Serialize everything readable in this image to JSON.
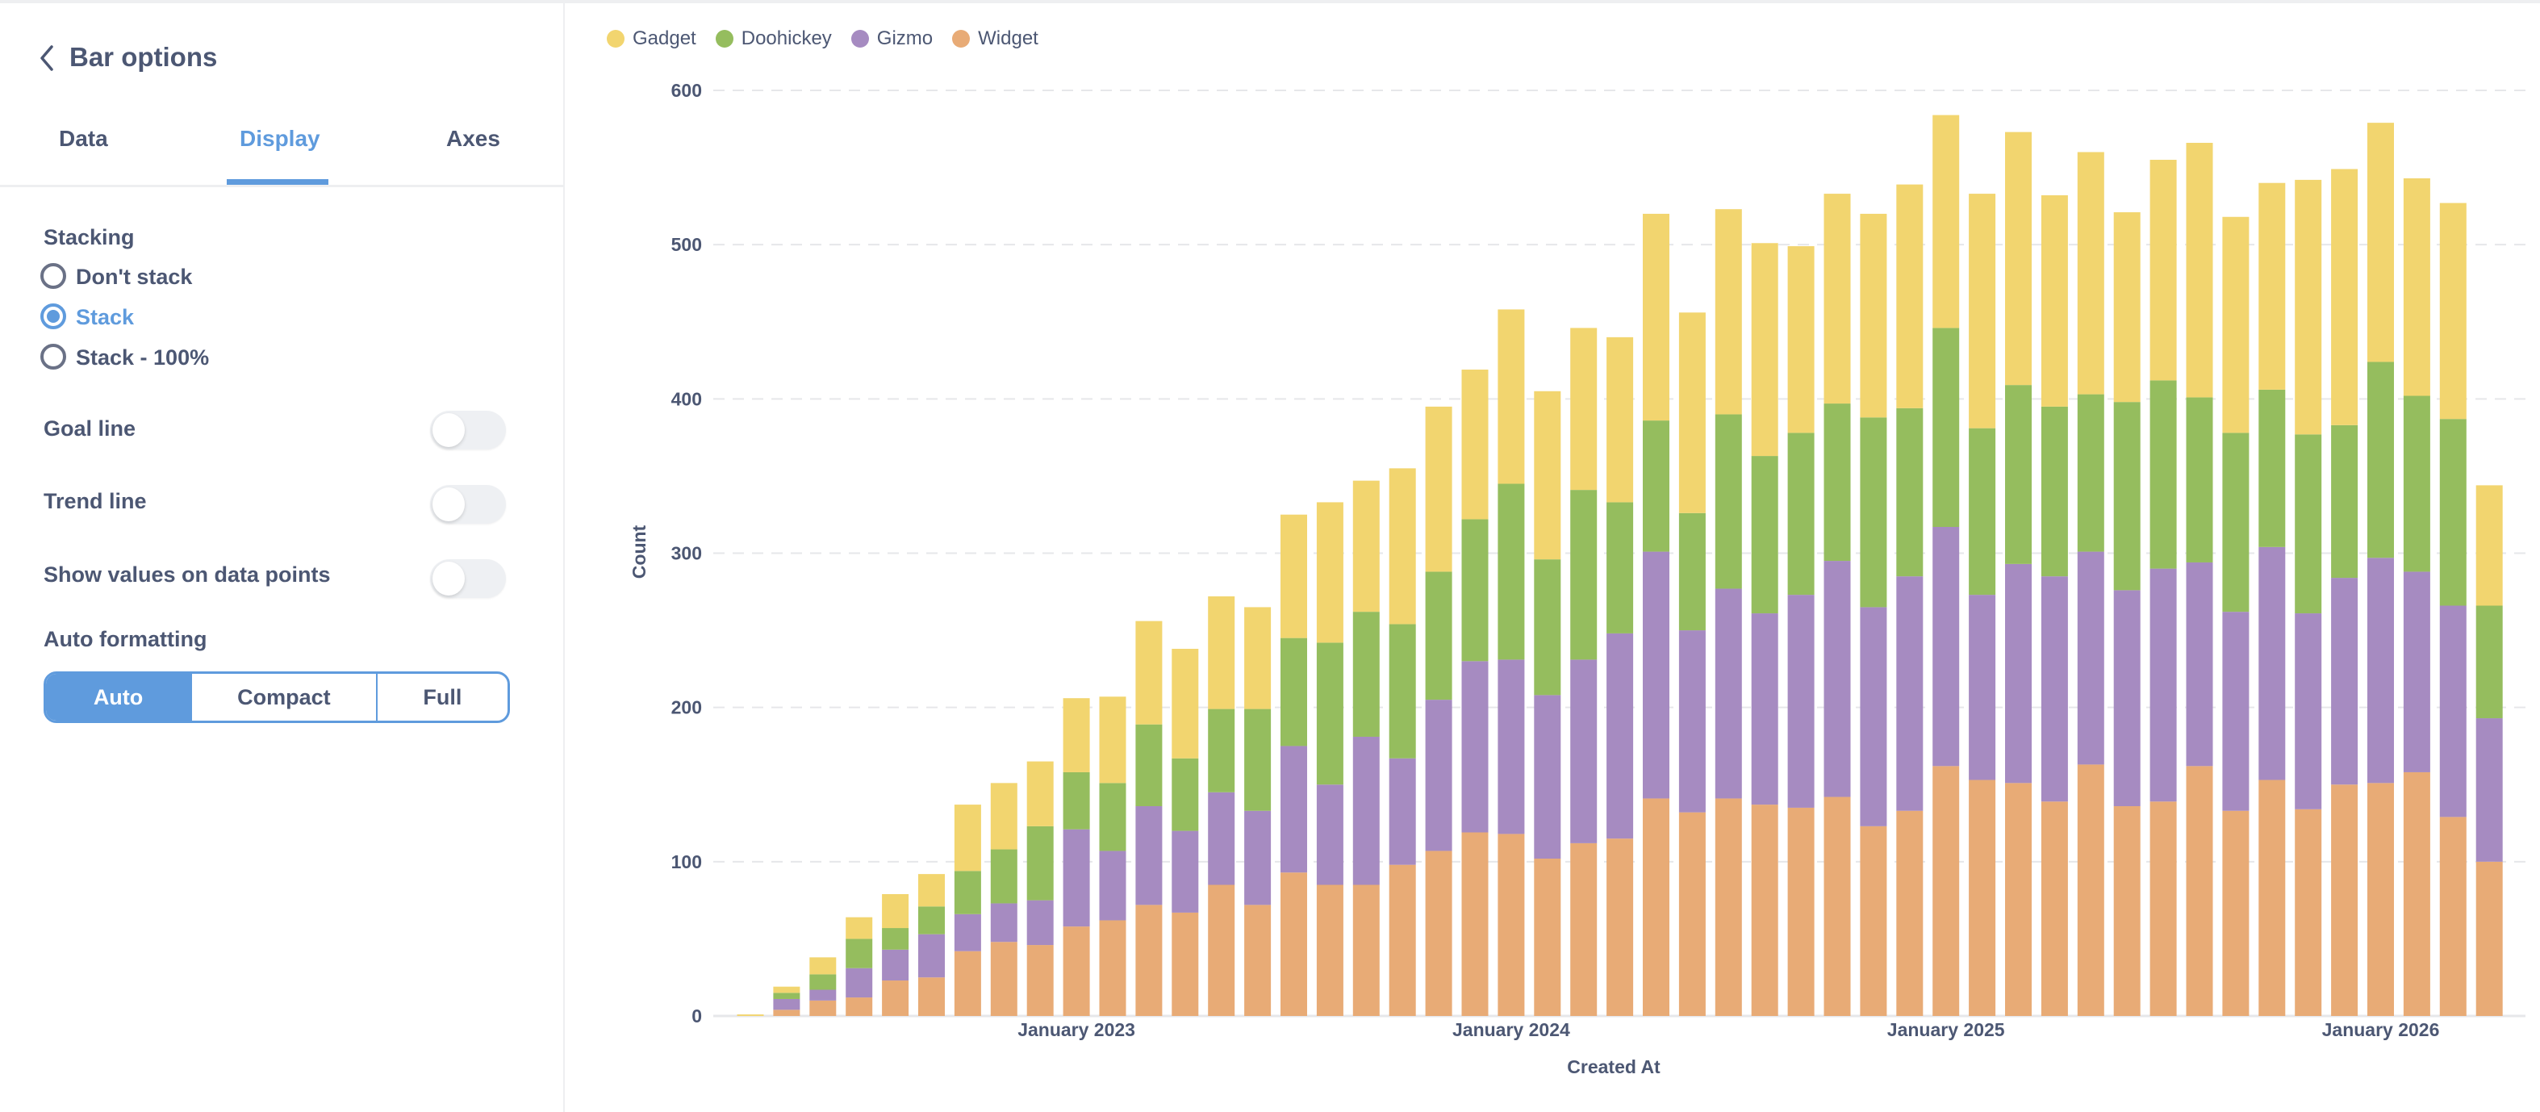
{
  "sidebar": {
    "title": "Bar options",
    "tabs": [
      {
        "label": "Data",
        "active": false
      },
      {
        "label": "Display",
        "active": true
      },
      {
        "label": "Axes",
        "active": false
      }
    ],
    "stacking": {
      "label": "Stacking",
      "options": [
        {
          "label": "Don't stack",
          "selected": false
        },
        {
          "label": "Stack",
          "selected": true
        },
        {
          "label": "Stack - 100%",
          "selected": false
        }
      ]
    },
    "toggles": [
      {
        "label": "Goal line",
        "on": false
      },
      {
        "label": "Trend line",
        "on": false
      },
      {
        "label": "Show values on data points",
        "on": false
      }
    ],
    "auto_formatting": {
      "label": "Auto formatting",
      "options": [
        {
          "label": "Auto",
          "selected": true
        },
        {
          "label": "Compact",
          "selected": false
        },
        {
          "label": "Full",
          "selected": false
        }
      ]
    }
  },
  "colors": {
    "accent": "#5F9BDD",
    "text": "#4C5773"
  },
  "chart_data": {
    "type": "bar",
    "stacked": true,
    "xlabel": "Created At",
    "ylabel": "Count",
    "ylim": [
      0,
      600
    ],
    "yticks": [
      0,
      100,
      200,
      300,
      400,
      500,
      600
    ],
    "grid": true,
    "legend_position": "top-left",
    "x": [
      "2022-04",
      "2022-05",
      "2022-06",
      "2022-07",
      "2022-08",
      "2022-09",
      "2022-10",
      "2022-11",
      "2022-12",
      "2023-01",
      "2023-02",
      "2023-03",
      "2023-04",
      "2023-05",
      "2023-06",
      "2023-07",
      "2023-08",
      "2023-09",
      "2023-10",
      "2023-11",
      "2023-12",
      "2024-01",
      "2024-02",
      "2024-03",
      "2024-04",
      "2024-05",
      "2024-06",
      "2024-07",
      "2024-08",
      "2024-09",
      "2024-10",
      "2024-11",
      "2024-12",
      "2025-01",
      "2025-02",
      "2025-03",
      "2025-04",
      "2025-05",
      "2025-06",
      "2025-07",
      "2025-08",
      "2025-09",
      "2025-10",
      "2025-11",
      "2025-12",
      "2026-01",
      "2026-02",
      "2026-03",
      "2026-04"
    ],
    "xtick_labels": [
      {
        "x": "2023-01",
        "label": "January 2023"
      },
      {
        "x": "2024-01",
        "label": "January 2024"
      },
      {
        "x": "2025-01",
        "label": "January 2025"
      },
      {
        "x": "2026-01",
        "label": "January 2026"
      }
    ],
    "legend": [
      "Gadget",
      "Doohickey",
      "Gizmo",
      "Widget"
    ],
    "series": [
      {
        "name": "Widget",
        "color": "#E8AB76",
        "values": [
          0,
          4,
          10,
          12,
          23,
          25,
          42,
          48,
          46,
          58,
          62,
          72,
          67,
          85,
          72,
          93,
          85,
          85,
          98,
          107,
          119,
          118,
          102,
          112,
          115,
          141,
          132,
          141,
          137,
          135,
          142,
          123,
          133,
          162,
          153,
          151,
          139,
          163,
          136,
          139,
          162,
          133,
          153,
          134,
          150,
          151,
          158,
          129,
          100
        ]
      },
      {
        "name": "Gizmo",
        "color": "#A68BC1",
        "values": [
          0,
          7,
          7,
          19,
          20,
          28,
          24,
          25,
          29,
          63,
          45,
          64,
          53,
          60,
          61,
          82,
          65,
          96,
          69,
          98,
          111,
          113,
          106,
          119,
          133,
          160,
          118,
          136,
          124,
          138,
          153,
          142,
          152,
          155,
          120,
          142,
          146,
          138,
          140,
          151,
          132,
          129,
          151,
          127,
          134,
          146,
          130,
          137,
          93
        ]
      },
      {
        "name": "Doohickey",
        "color": "#95BD5E",
        "values": [
          0,
          4,
          10,
          19,
          14,
          18,
          28,
          35,
          48,
          37,
          44,
          53,
          47,
          54,
          66,
          70,
          92,
          81,
          87,
          83,
          92,
          114,
          88,
          110,
          85,
          85,
          76,
          113,
          102,
          105,
          102,
          123,
          109,
          129,
          108,
          116,
          110,
          102,
          122,
          122,
          107,
          116,
          102,
          116,
          99,
          127,
          114,
          121,
          73
        ]
      },
      {
        "name": "Gadget",
        "color": "#F2D56F",
        "values": [
          1,
          4,
          11,
          14,
          22,
          21,
          43,
          43,
          42,
          48,
          56,
          67,
          71,
          73,
          66,
          80,
          91,
          85,
          101,
          107,
          97,
          113,
          109,
          105,
          107,
          134,
          130,
          133,
          138,
          121,
          136,
          132,
          145,
          138,
          152,
          164,
          137,
          157,
          123,
          143,
          165,
          140,
          134,
          165,
          166,
          155,
          141,
          140,
          78
        ]
      }
    ]
  }
}
